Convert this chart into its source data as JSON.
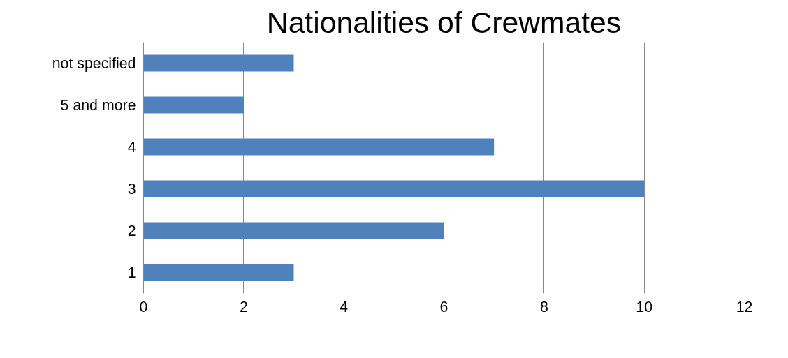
{
  "chart_data": {
    "type": "bar",
    "orientation": "horizontal",
    "title": "Nationalities of Crewmates",
    "categories": [
      "not specified",
      "5 and more",
      "4",
      "3",
      "2",
      "1"
    ],
    "values": [
      3,
      2,
      7,
      10,
      6,
      3
    ],
    "color": "#4f81bd",
    "xlim": [
      0,
      12
    ],
    "xticks": [
      0,
      2,
      4,
      6,
      8,
      10,
      12
    ],
    "grid": "x"
  }
}
